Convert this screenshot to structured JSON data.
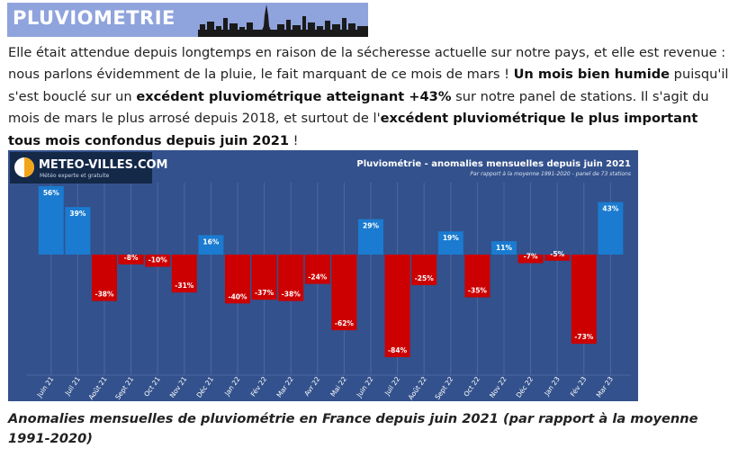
{
  "banner": {
    "title": "PLUVIOMETRIE"
  },
  "intro": {
    "p1": "Elle était attendue depuis longtemps en raison de la sécheresse actuelle sur notre pays, et elle est revenue : nous parlons évidemment de la pluie, le fait marquant de ce mois de mars ! ",
    "b1": "Un mois bien humide",
    "p2": " puisqu'il s'est bouclé sur un ",
    "b2": "excédent pluviométrique atteignant +43%",
    "p3": " sur notre panel de stations. Il s'agit du mois de mars le plus arrosé depuis 2018, et surtout de l'",
    "b3": "excédent pluviométrique le plus important tous mois confondus depuis juin 2021",
    "p4": " !"
  },
  "logo": {
    "name": "METEO-VILLES.COM",
    "tagline": "Météo experte et gratuite"
  },
  "caption": "Anomalies mensuelles de pluviométrie en France depuis juin 2021 (par rapport à la moyenne 1991-2020)",
  "chart_data": {
    "type": "bar",
    "title": "Pluviométrie - anomalies mensuelles depuis juin 2021",
    "subtitle": "Par rapport à la moyenne 1991-2020 - panel de 73 stations",
    "categories": [
      "Juin 21",
      "Juil 21",
      "Août 21",
      "Sept 21",
      "Oct 21",
      "Nov 21",
      "Déc 21",
      "Jan 22",
      "Fév 22",
      "Mar 22",
      "Avr 22",
      "Mai 22",
      "Juin 22",
      "Juil 22",
      "Août 22",
      "Sept 22",
      "Oct 22",
      "Nov 22",
      "Déc 22",
      "Jan 23",
      "Fév 23",
      "Mar 23"
    ],
    "values": [
      56,
      39,
      -38,
      -8,
      -10,
      -31,
      16,
      -40,
      -37,
      -38,
      -24,
      -62,
      29,
      -84,
      -25,
      19,
      -35,
      11,
      -7,
      -5,
      -73,
      43
    ],
    "labels": [
      "56%",
      "39%",
      "-38%",
      "-8%",
      "-10%",
      "-31%",
      "16%",
      "-40%",
      "-37%",
      "-38%",
      "-24%",
      "-62%",
      "29%",
      "-84%",
      "-25%",
      "19%",
      "-35%",
      "11%",
      "-7%",
      "-5%",
      "-73%",
      "43%"
    ],
    "unit": "%",
    "colors": {
      "positive": "#1a7bd0",
      "negative": "#cc0000",
      "background": "#33518c",
      "grid": "#4d68a1",
      "text": "#ffffff"
    },
    "ylim": [
      -84,
      56
    ],
    "grid": true,
    "legend": "none"
  }
}
